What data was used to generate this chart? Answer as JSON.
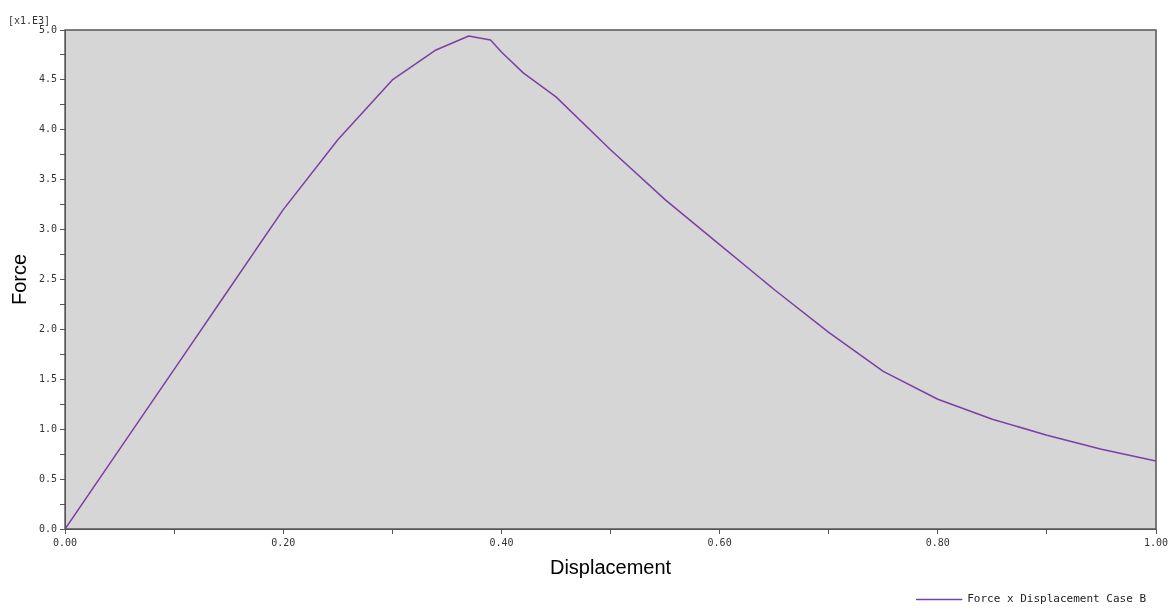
{
  "chart_data": {
    "type": "line",
    "xlabel": "Displacement",
    "ylabel": "Force",
    "annotations": [
      "[x1.E3]"
    ],
    "series": [
      {
        "name": "Force x Displacement Case B",
        "color": "#7b3fa6",
        "x": [
          0,
          0.05,
          0.1,
          0.15,
          0.2,
          0.25,
          0.3,
          0.34,
          0.37,
          0.39,
          0.4,
          0.42,
          0.45,
          0.5,
          0.55,
          0.6,
          0.65,
          0.7,
          0.75,
          0.8,
          0.85,
          0.9,
          0.95,
          1.0
        ],
        "values": [
          0,
          0.8,
          1.6,
          2.4,
          3.2,
          3.9,
          4.5,
          4.8,
          4.94,
          4.9,
          4.78,
          4.57,
          4.33,
          3.8,
          3.3,
          2.85,
          2.4,
          1.97,
          1.58,
          1.3,
          1.1,
          0.94,
          0.8,
          0.68
        ]
      }
    ],
    "xlim": [
      0,
      1.0
    ],
    "xticks": [
      {
        "value": 0,
        "label": "0.00"
      },
      {
        "value": 0.1,
        "label": null
      },
      {
        "value": 0.2,
        "label": "0.20"
      },
      {
        "value": 0.3,
        "label": null
      },
      {
        "value": 0.4,
        "label": "0.40"
      },
      {
        "value": 0.5,
        "label": null
      },
      {
        "value": 0.6,
        "label": "0.60"
      },
      {
        "value": 0.7,
        "label": null
      },
      {
        "value": 0.8,
        "label": "0.80"
      },
      {
        "value": 0.9,
        "label": null
      },
      {
        "value": 1.0,
        "label": "1.00"
      }
    ],
    "ylim": [
      0,
      5.0
    ],
    "yticks": [
      {
        "value": 0,
        "label": "0.0"
      },
      {
        "value": 0.25,
        "label": null
      },
      {
        "value": 0.5,
        "label": "0.5"
      },
      {
        "value": 0.75,
        "label": null
      },
      {
        "value": 1.0,
        "label": "1.0"
      },
      {
        "value": 1.25,
        "label": null
      },
      {
        "value": 1.5,
        "label": "1.5"
      },
      {
        "value": 1.75,
        "label": null
      },
      {
        "value": 2.0,
        "label": "2.0"
      },
      {
        "value": 2.25,
        "label": null
      },
      {
        "value": 2.5,
        "label": "2.5"
      },
      {
        "value": 2.75,
        "label": null
      },
      {
        "value": 3.0,
        "label": "3.0"
      },
      {
        "value": 3.25,
        "label": null
      },
      {
        "value": 3.5,
        "label": "3.5"
      },
      {
        "value": 3.75,
        "label": null
      },
      {
        "value": 4.0,
        "label": "4.0"
      },
      {
        "value": 4.25,
        "label": null
      },
      {
        "value": 4.5,
        "label": "4.5"
      },
      {
        "value": 4.75,
        "label": null
      },
      {
        "value": 5.0,
        "label": "5.0"
      }
    ],
    "grid": false,
    "legend": "bottom right",
    "marker": "none",
    "line_style": "solid"
  }
}
